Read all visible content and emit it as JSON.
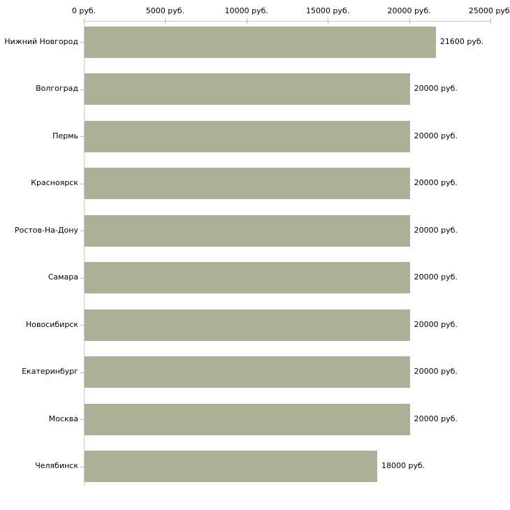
{
  "chart_data": {
    "type": "bar",
    "orientation": "horizontal",
    "title": "",
    "xlabel": "",
    "ylabel": "",
    "unit": "руб.",
    "categories": [
      "Нижний Новгород",
      "Волгоград",
      "Пермь",
      "Красноярск",
      "Ростов-На-Дону",
      "Самара",
      "Новосибирск",
      "Екатеринбург",
      "Москва",
      "Челябинск"
    ],
    "values": [
      21600,
      20000,
      20000,
      20000,
      20000,
      20000,
      20000,
      20000,
      20000,
      18000
    ],
    "value_labels": [
      "21600 руб.",
      "20000 руб.",
      "20000 руб.",
      "20000 руб.",
      "20000 руб.",
      "20000 руб.",
      "20000 руб.",
      "20000 руб.",
      "20000 руб.",
      "18000 руб."
    ],
    "x_axis": {
      "position": "top",
      "range": [
        0,
        25000
      ],
      "ticks": [
        0,
        5000,
        10000,
        15000,
        20000,
        25000
      ],
      "tick_labels": [
        "0 руб.",
        "5000 руб.",
        "10000 руб.",
        "15000 руб.",
        "20000 руб.",
        "25000 руб."
      ]
    },
    "grid": false,
    "legend": false,
    "colors": {
      "bar": "#abb197",
      "axis_line": "#c6c6c6",
      "tick": "#b9b99f",
      "text": "#000000",
      "background": "#ffffff"
    }
  }
}
